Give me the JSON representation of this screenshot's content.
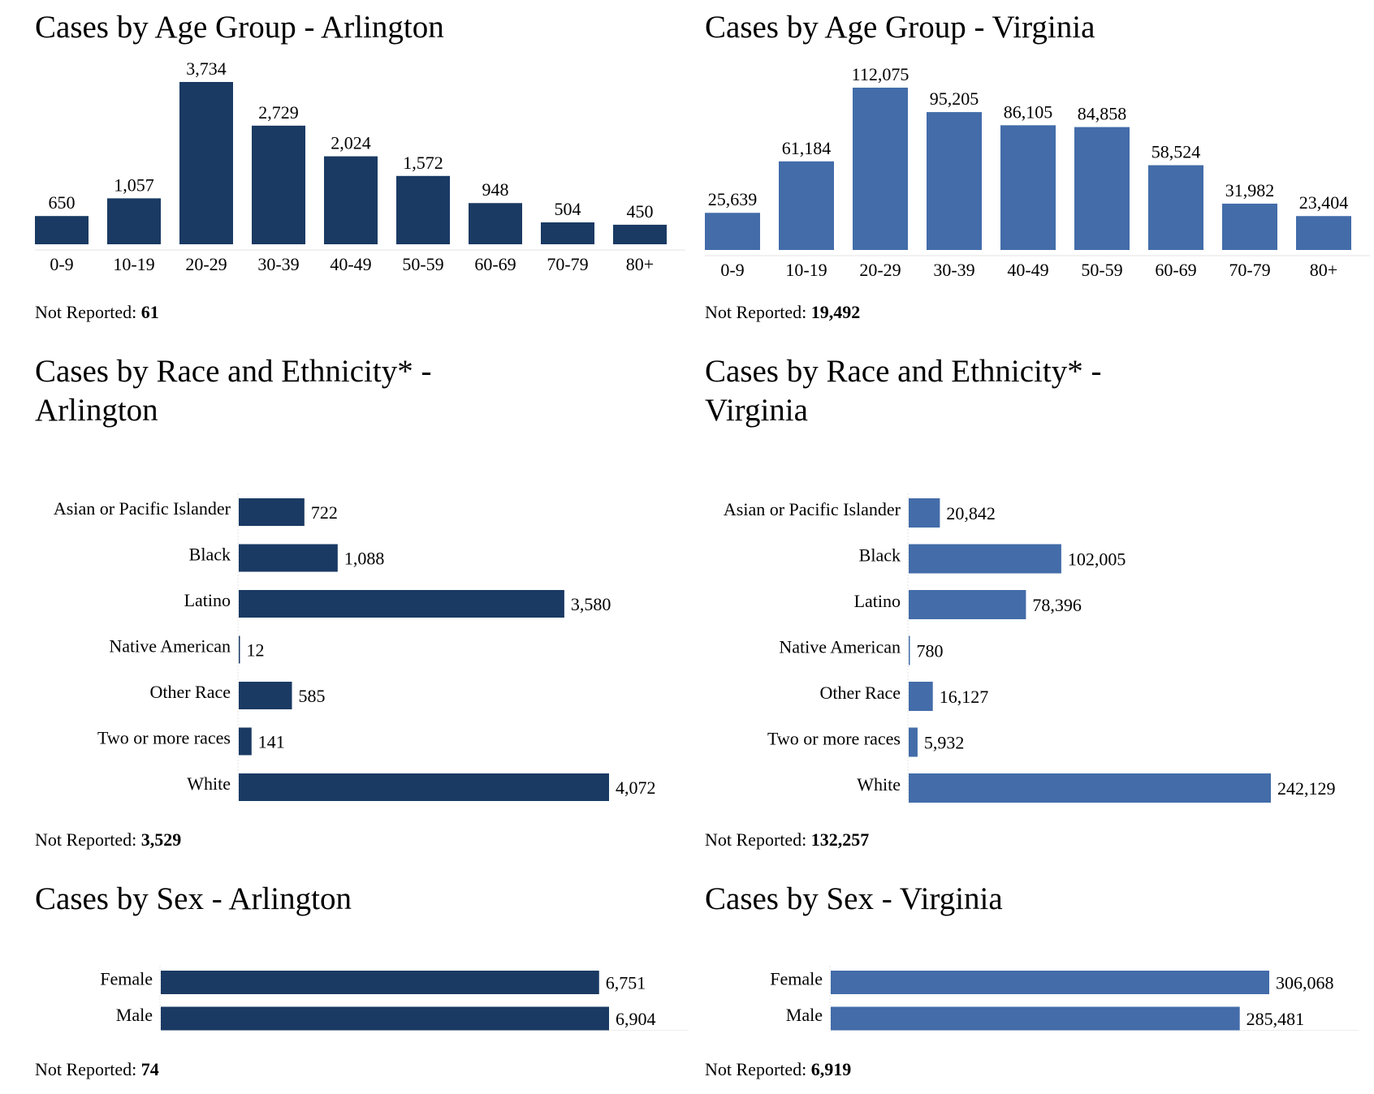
{
  "colors": {
    "arlington": "#1a3a63",
    "virginia": "#436ca9",
    "axis": "#e3e3e3"
  },
  "not_reported_label": "Not Reported: ",
  "chart_data": [
    {
      "id": "age-arlington",
      "type": "bar",
      "orientation": "vertical",
      "title": "Cases by Age Group - Arlington",
      "categories": [
        "0-9",
        "10-19",
        "20-29",
        "30-39",
        "40-49",
        "50-59",
        "60-69",
        "70-79",
        "80+"
      ],
      "values": [
        650,
        1057,
        3734,
        2729,
        2024,
        1572,
        948,
        504,
        450
      ],
      "value_labels": [
        "650",
        "1,057",
        "3,734",
        "2,729",
        "2,024",
        "1,572",
        "948",
        "504",
        "450"
      ],
      "not_reported": "61",
      "series_color": "arlington",
      "xlabel": "",
      "ylabel": "",
      "grid": false
    },
    {
      "id": "age-virginia",
      "type": "bar",
      "orientation": "vertical",
      "title": "Cases by Age Group - Virginia",
      "categories": [
        "0-9",
        "10-19",
        "20-29",
        "30-39",
        "40-49",
        "50-59",
        "60-69",
        "70-79",
        "80+"
      ],
      "values": [
        25639,
        61184,
        112075,
        95205,
        86105,
        84858,
        58524,
        31982,
        23404
      ],
      "value_labels": [
        "25,639",
        "61,184",
        "112,075",
        "95,205",
        "86,105",
        "84,858",
        "58,524",
        "31,982",
        "23,404"
      ],
      "not_reported": "19,492",
      "series_color": "virginia",
      "xlabel": "",
      "ylabel": "",
      "grid": false
    },
    {
      "id": "race-arlington",
      "type": "bar",
      "orientation": "horizontal",
      "title_lines": [
        "Cases by Race and Ethnicity* -",
        "Arlington"
      ],
      "categories": [
        "Asian or Pacific Islander",
        "Black",
        "Latino",
        "Native American",
        "Other Race",
        "Two or more races",
        "White"
      ],
      "values": [
        722,
        1088,
        3580,
        12,
        585,
        141,
        4072
      ],
      "value_labels": [
        "722",
        "1,088",
        "3,580",
        "12",
        "585",
        "141",
        "4,072"
      ],
      "not_reported": "3,529",
      "series_color": "arlington",
      "xlabel": "",
      "ylabel": "",
      "grid": false
    },
    {
      "id": "race-virginia",
      "type": "bar",
      "orientation": "horizontal",
      "title_lines": [
        "Cases by Race and Ethnicity* -",
        "Virginia"
      ],
      "categories": [
        "Asian or Pacific Islander",
        "Black",
        "Latino",
        "Native American",
        "Other Race",
        "Two or more races",
        "White"
      ],
      "values": [
        20842,
        102005,
        78396,
        780,
        16127,
        5932,
        242129
      ],
      "value_labels": [
        "20,842",
        "102,005",
        "78,396",
        "780",
        "16,127",
        "5,932",
        "242,129"
      ],
      "not_reported": "132,257",
      "series_color": "virginia",
      "xlabel": "",
      "ylabel": "",
      "grid": false
    },
    {
      "id": "sex-arlington",
      "type": "bar",
      "orientation": "horizontal",
      "title": "Cases by Sex - Arlington",
      "categories": [
        "Female",
        "Male"
      ],
      "values": [
        6751,
        6904
      ],
      "value_labels": [
        "6,751",
        "6,904"
      ],
      "not_reported": "74",
      "series_color": "arlington",
      "xlabel": "",
      "ylabel": "",
      "grid": false
    },
    {
      "id": "sex-virginia",
      "type": "bar",
      "orientation": "horizontal",
      "title": "Cases by Sex - Virginia",
      "categories": [
        "Female",
        "Male"
      ],
      "values": [
        306068,
        285481
      ],
      "value_labels": [
        "306,068",
        "285,481"
      ],
      "not_reported": "6,919",
      "series_color": "virginia",
      "xlabel": "",
      "ylabel": "",
      "grid": false
    }
  ]
}
